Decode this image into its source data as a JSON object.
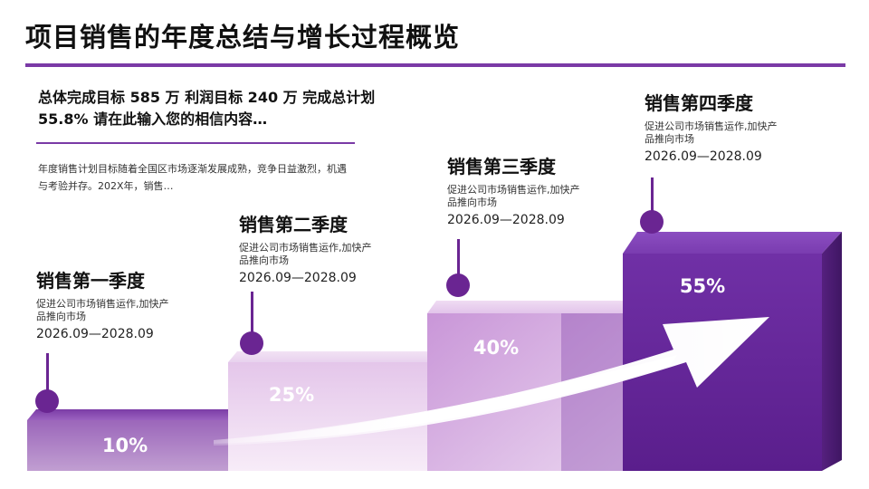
{
  "title": "项目销售的年度总结与增长过程概览",
  "summary": "总体完成目标 585 万 利润目标 240 万 完成总计划 55.8% 请在此输入您的相信内容…",
  "description": "年度销售计划目标随着全国区市场逐渐发展成熟，竞争日益激烈，机遇与考验并存。202X年，销售…",
  "stages": [
    {
      "title": "销售第一季度",
      "desc": "促进公司市场销售运作,加快产品推向市场",
      "date": "2026.09—2028.09",
      "percent": "10%",
      "value": 10
    },
    {
      "title": "销售第二季度",
      "desc": "促进公司市场销售运作,加快产品推向市场",
      "date": "2026.09—2028.09",
      "percent": "25%",
      "value": 25
    },
    {
      "title": "销售第三季度",
      "desc": "促进公司市场销售运作,加快产品推向市场",
      "date": "2026.09—2028.09",
      "percent": "40%",
      "value": 40
    },
    {
      "title": "销售第四季度",
      "desc": "促进公司市场销售运作,加快产品推向市场",
      "date": "2026.09—2028.09",
      "percent": "55%",
      "value": 55
    }
  ],
  "colors": {
    "accent": "#7a3aa6",
    "pin": "#6a2592",
    "bar_dark": "#6d2aa0",
    "bar_light": "#e6c8ea"
  }
}
